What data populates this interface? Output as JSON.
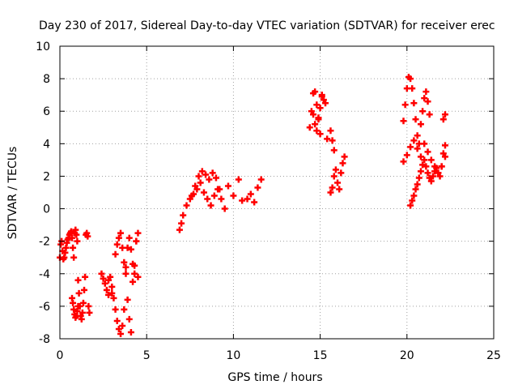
{
  "chart_data": {
    "type": "scatter",
    "title": "Day 230 of 2017, Sidereal Day-to-day VTEC variation (SDTVAR) for receiver erec",
    "xlabel": "GPS time / hours",
    "ylabel": "SDTVAR / TECUs",
    "xlim": [
      0,
      25
    ],
    "ylim": [
      -8,
      10
    ],
    "xticks": [
      "0",
      "5",
      "10",
      "15",
      "20",
      "25"
    ],
    "yticks": [
      "-8",
      "-6",
      "-4",
      "-2",
      "0",
      "2",
      "4",
      "6",
      "8",
      "10"
    ],
    "grid": true,
    "marker": "plus",
    "color": "#ff0000",
    "series": [
      {
        "name": "SDTVAR",
        "x": [
          0.0,
          0.05,
          0.1,
          0.15,
          0.2,
          0.25,
          0.3,
          0.35,
          0.4,
          0.45,
          0.5,
          0.55,
          0.6,
          0.65,
          0.7,
          0.75,
          0.8,
          0.85,
          0.9,
          0.95,
          1.0,
          1.05,
          1.1,
          1.15,
          1.2,
          1.25,
          1.3,
          1.35,
          1.4,
          1.45,
          1.5,
          1.55,
          1.6,
          1.65,
          1.7,
          0.7,
          0.75,
          0.8,
          0.85,
          0.9,
          0.95,
          1.0,
          1.05,
          2.4,
          2.5,
          2.6,
          2.7,
          2.8,
          2.9,
          3.0,
          3.1,
          3.2,
          3.3,
          3.4,
          3.5,
          3.6,
          3.7,
          3.8,
          3.9,
          4.0,
          4.1,
          4.2,
          4.3,
          4.4,
          4.5,
          2.8,
          3.0,
          3.2,
          3.3,
          3.4,
          3.5,
          3.6,
          3.7,
          3.8,
          3.9,
          4.0,
          4.1,
          4.2,
          4.3,
          4.4,
          4.5,
          6.9,
          7.0,
          7.1,
          7.3,
          7.5,
          7.7,
          7.9,
          8.1,
          8.3,
          8.5,
          8.7,
          8.9,
          9.1,
          9.3,
          9.5,
          9.7,
          10.0,
          10.3,
          10.5,
          10.8,
          11.0,
          11.2,
          11.4,
          11.6,
          7.6,
          7.8,
          8.0,
          8.2,
          8.4,
          8.6,
          8.8,
          9.0,
          9.2,
          14.4,
          14.5,
          14.6,
          14.7,
          14.8,
          14.9,
          15.0,
          15.1,
          15.2,
          15.3,
          15.4,
          14.6,
          14.7,
          14.8,
          14.9,
          15.0,
          15.1,
          15.6,
          15.7,
          15.8,
          15.9,
          16.0,
          16.1,
          16.2,
          16.3,
          16.4,
          15.6,
          15.7,
          15.8,
          19.8,
          19.9,
          20.0,
          20.1,
          20.2,
          20.3,
          20.4,
          20.5,
          20.6,
          20.7,
          20.8,
          20.9,
          21.0,
          21.1,
          21.2,
          21.3,
          19.8,
          20.0,
          20.2,
          20.4,
          20.6,
          20.8,
          21.0,
          21.2,
          21.4,
          21.6,
          21.8,
          22.0,
          22.2,
          20.2,
          20.3,
          20.4,
          20.5,
          20.6,
          20.7,
          20.8,
          20.9,
          21.0,
          21.1,
          21.2,
          21.3,
          21.4,
          21.5,
          21.6,
          21.7,
          21.8,
          21.9,
          22.0,
          22.1,
          22.2,
          22.1,
          22.2
        ],
        "y": [
          -3.0,
          -2.2,
          -2.0,
          -2.6,
          -3.1,
          -3.0,
          -2.7,
          -2.4,
          -2.1,
          -1.9,
          -1.8,
          -1.6,
          -1.5,
          -1.4,
          -1.8,
          -2.4,
          -3.0,
          -1.5,
          -1.3,
          -1.6,
          -2.0,
          -4.4,
          -5.2,
          -6.0,
          -6.6,
          -6.8,
          -6.4,
          -5.8,
          -5.0,
          -4.2,
          -1.6,
          -1.5,
          -1.7,
          -6.0,
          -6.4,
          -5.5,
          -5.8,
          -6.2,
          -6.5,
          -6.7,
          -6.6,
          -6.3,
          -6.0,
          -4.0,
          -4.3,
          -4.6,
          -5.0,
          -5.3,
          -4.2,
          -4.8,
          -5.5,
          -6.2,
          -6.9,
          -7.4,
          -7.7,
          -7.2,
          -6.2,
          -3.6,
          -2.4,
          -1.8,
          -2.5,
          -3.4,
          -4.0,
          -2.0,
          -1.5,
          -4.4,
          -5.2,
          -2.8,
          -2.2,
          -1.8,
          -1.5,
          -2.4,
          -3.3,
          -4.0,
          -5.6,
          -6.8,
          -7.6,
          -4.5,
          -3.5,
          -2.0,
          -4.2,
          -1.3,
          -0.9,
          -0.4,
          0.2,
          0.6,
          0.9,
          1.2,
          1.6,
          1.0,
          0.6,
          0.2,
          0.8,
          1.2,
          0.6,
          0.0,
          1.4,
          0.8,
          1.8,
          0.5,
          0.6,
          0.9,
          0.4,
          1.3,
          1.8,
          0.8,
          1.4,
          2.0,
          2.3,
          2.1,
          1.8,
          2.2,
          1.9,
          1.2,
          5.0,
          6.0,
          7.1,
          7.2,
          6.4,
          5.5,
          4.6,
          6.9,
          6.7,
          6.5,
          4.3,
          5.8,
          5.2,
          4.8,
          5.6,
          6.2,
          7.0,
          4.8,
          4.2,
          3.6,
          2.4,
          1.6,
          1.2,
          2.2,
          2.8,
          3.2,
          1.0,
          1.3,
          2.0,
          5.4,
          6.4,
          7.4,
          8.1,
          8.0,
          7.4,
          6.5,
          5.5,
          4.5,
          4.0,
          5.2,
          6.0,
          6.8,
          7.2,
          6.6,
          5.8,
          2.9,
          3.3,
          3.8,
          4.2,
          3.7,
          3.2,
          4.0,
          3.5,
          3.0,
          2.6,
          2.2,
          2.6,
          3.2,
          0.2,
          0.5,
          0.8,
          1.2,
          1.5,
          1.9,
          2.3,
          2.7,
          3.0,
          2.6,
          2.2,
          1.9,
          1.7,
          2.0,
          2.3,
          2.5,
          2.2,
          2.0,
          2.6,
          3.4,
          3.9,
          5.5,
          5.8
        ]
      }
    ]
  }
}
